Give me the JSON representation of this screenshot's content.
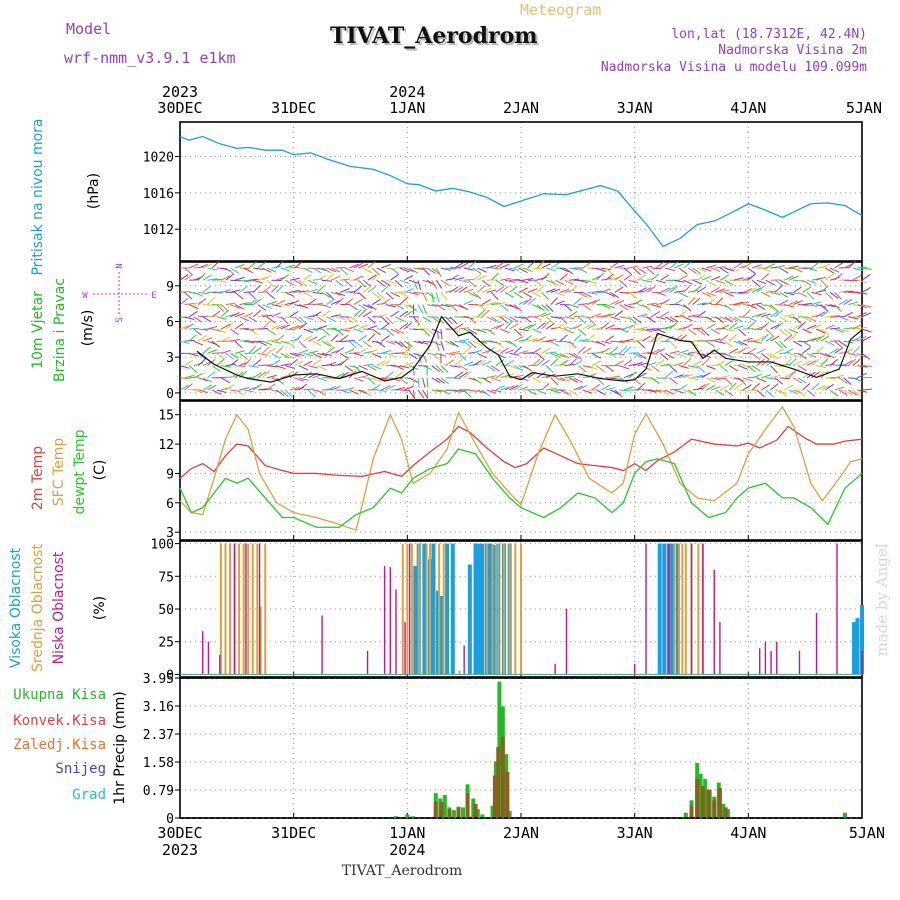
{
  "header": {
    "model_label": "Model",
    "model_name": "wrf-nmm_v3.9.1 e1km",
    "title": "TIVAT_Aerodrom",
    "meteogram_label": "Meteogram",
    "lonlat": "lon,lat (18.7312E, 42.4N)",
    "elevation": "Nadmorska Visina 2m",
    "model_elevation": "Nadmorska Visina u modelu 109.099m",
    "watermark": "made by Angel",
    "footer_title": "TIVAT_Aerodrom"
  },
  "colors": {
    "pressure": "#1aa0e0",
    "t2m": "#e83c3c",
    "sfc": "#dca040",
    "dew": "#22cc22",
    "high_cloud": "#1aa0e0",
    "mid_cloud": "#dca040",
    "low_cloud": "#c01890",
    "total_precip": "#22bb22",
    "conv_precip": "#e83c3c",
    "frz_precip": "#f07030",
    "snow": "#4040e0",
    "hail": "#20c0c0",
    "model_label": "#9040c0"
  },
  "time_axis": {
    "top_years": [
      {
        "label": "2023",
        "day": 0
      },
      {
        "label": "2024",
        "day": 2
      }
    ],
    "bottom_years": [
      {
        "label": "2023",
        "day": 0
      },
      {
        "label": "2024",
        "day": 2
      }
    ],
    "days": [
      "30DEC",
      "31DEC",
      "1JAN",
      "2JAN",
      "3JAN",
      "4JAN",
      "5JAN"
    ]
  },
  "wind_axis_labels": {
    "n": "N",
    "s": "S",
    "w": "W",
    "e": "E"
  },
  "chart_data": [
    {
      "type": "line",
      "panel": "pressure",
      "ylabel": "Pritisak na nivou mora",
      "unit": "(hPa)",
      "yticks": [
        1012,
        1016,
        1020
      ],
      "ylim": [
        1008.5,
        1023.8
      ],
      "grid": true,
      "series": [
        {
          "x": [
            0,
            0.08,
            0.2,
            0.35,
            0.5,
            0.6,
            0.75,
            0.9,
            1.0,
            1.15,
            1.3,
            1.5,
            1.7,
            1.85,
            2.0,
            2.1,
            2.25,
            2.4,
            2.55,
            2.7,
            2.85,
            3.0,
            3.2,
            3.4,
            3.55,
            3.7,
            3.85,
            4.0,
            4.1,
            4.25,
            4.4,
            4.55,
            4.7,
            4.85,
            5.0,
            5.15,
            5.3,
            5.45,
            5.55,
            5.7,
            5.85,
            6.0
          ],
          "values": [
            1022.2,
            1021.8,
            1022.2,
            1021.4,
            1020.9,
            1021.0,
            1020.7,
            1020.7,
            1020.2,
            1020.4,
            1019.7,
            1018.9,
            1018.6,
            1017.9,
            1017.0,
            1016.9,
            1016.2,
            1016.5,
            1016.1,
            1015.5,
            1014.5,
            1015.1,
            1015.9,
            1015.8,
            1016.3,
            1016.8,
            1016.2,
            1014.0,
            1012.6,
            1010.1,
            1011.0,
            1012.5,
            1012.9,
            1013.8,
            1014.8,
            1014.1,
            1013.3,
            1014.2,
            1014.8,
            1014.9,
            1014.6,
            1013.5
          ]
        }
      ]
    },
    {
      "type": "line",
      "panel": "wind",
      "ylabel": "10m Vjetar Brzina i Pravac",
      "unit": "(m/s)",
      "yticks": [
        0,
        3,
        6,
        9
      ],
      "ylim": [
        -0.6,
        11.0
      ],
      "grid": true,
      "series": [
        {
          "x": [
            0.15,
            0.3,
            0.5,
            0.6,
            0.8,
            1.0,
            1.2,
            1.4,
            1.6,
            1.8,
            1.95,
            2.05,
            2.2,
            2.3,
            2.45,
            2.55,
            2.7,
            2.8,
            2.9,
            3.0,
            3.1,
            3.3,
            3.5,
            3.7,
            3.9,
            4.0,
            4.1,
            4.2,
            4.4,
            4.5,
            4.6,
            4.7,
            4.8,
            5.0,
            5.2,
            5.4,
            5.6,
            5.8,
            5.9,
            6.0
          ],
          "values": [
            3.5,
            2.4,
            1.5,
            1.2,
            0.9,
            1.5,
            1.6,
            1.2,
            1.8,
            1.0,
            1.3,
            2.0,
            4.0,
            6.4,
            4.8,
            5.1,
            3.8,
            3.2,
            1.4,
            1.1,
            1.7,
            1.4,
            1.6,
            1.2,
            1.0,
            1.1,
            2.0,
            5.0,
            4.4,
            4.3,
            2.9,
            3.6,
            2.9,
            2.6,
            2.6,
            2.0,
            1.3,
            2.0,
            4.5,
            5.3
          ]
        }
      ]
    },
    {
      "type": "line",
      "panel": "temperature",
      "ylabel": "2m Temp SFC Temp dewpt Temp",
      "unit": "(C)",
      "yticks": [
        3,
        6,
        9,
        12,
        15
      ],
      "ylim": [
        2.2,
        16.4
      ],
      "grid": true,
      "series": [
        {
          "name": "2m Temp",
          "x": [
            0,
            0.1,
            0.2,
            0.3,
            0.4,
            0.5,
            0.6,
            0.75,
            0.9,
            1.0,
            1.2,
            1.4,
            1.6,
            1.8,
            1.95,
            2.05,
            2.2,
            2.35,
            2.45,
            2.55,
            2.7,
            2.85,
            2.95,
            3.05,
            3.2,
            3.35,
            3.5,
            3.65,
            3.8,
            3.9,
            4.0,
            4.1,
            4.2,
            4.35,
            4.5,
            4.7,
            4.9,
            5.0,
            5.1,
            5.25,
            5.35,
            5.5,
            5.6,
            5.75,
            5.85,
            6.0
          ],
          "values": [
            8.5,
            9.5,
            10.0,
            9.2,
            10.8,
            12.0,
            11.8,
            9.8,
            9.3,
            9.0,
            9.0,
            8.8,
            8.7,
            9.2,
            8.7,
            9.8,
            11.2,
            12.5,
            13.8,
            13.2,
            11.6,
            10.2,
            9.6,
            10.0,
            11.6,
            10.8,
            10.0,
            9.8,
            9.6,
            9.3,
            10.0,
            9.3,
            10.3,
            11.2,
            12.5,
            12.0,
            11.8,
            12.1,
            11.6,
            12.4,
            13.8,
            12.6,
            12.0,
            12.0,
            12.3,
            12.5
          ]
        },
        {
          "name": "SFC Temp",
          "x": [
            0,
            0.1,
            0.2,
            0.3,
            0.4,
            0.5,
            0.6,
            0.7,
            0.85,
            1.0,
            1.2,
            1.4,
            1.55,
            1.7,
            1.85,
            1.95,
            2.05,
            2.2,
            2.35,
            2.45,
            2.6,
            2.75,
            2.9,
            3.0,
            3.15,
            3.3,
            3.45,
            3.6,
            3.8,
            3.9,
            4.0,
            4.1,
            4.25,
            4.4,
            4.55,
            4.7,
            4.9,
            5.0,
            5.15,
            5.3,
            5.4,
            5.55,
            5.65,
            5.8,
            5.9,
            6.0
          ],
          "values": [
            6.2,
            5.0,
            4.8,
            8.5,
            12.5,
            15.0,
            13.5,
            9.0,
            6.0,
            5.0,
            4.5,
            3.8,
            3.2,
            10.5,
            15.0,
            12.5,
            8.0,
            9.0,
            11.5,
            15.2,
            12.0,
            9.0,
            7.0,
            5.8,
            11.0,
            15.0,
            12.0,
            8.5,
            7.0,
            8.0,
            13.0,
            15.1,
            12.0,
            8.0,
            6.5,
            6.2,
            8.0,
            11.0,
            13.5,
            15.8,
            13.8,
            8.0,
            6.2,
            8.5,
            10.2,
            10.5
          ]
        },
        {
          "name": "dewpt Temp",
          "x": [
            0,
            0.1,
            0.2,
            0.3,
            0.4,
            0.5,
            0.6,
            0.75,
            0.9,
            1.0,
            1.2,
            1.4,
            1.55,
            1.7,
            1.85,
            1.95,
            2.05,
            2.2,
            2.35,
            2.45,
            2.6,
            2.75,
            2.9,
            3.0,
            3.2,
            3.35,
            3.5,
            3.65,
            3.8,
            3.9,
            4.0,
            4.1,
            4.2,
            4.35,
            4.5,
            4.65,
            4.8,
            4.9,
            5.0,
            5.15,
            5.3,
            5.4,
            5.55,
            5.7,
            5.85,
            6.0
          ],
          "values": [
            7.5,
            5.0,
            5.5,
            7.0,
            8.5,
            8.0,
            8.5,
            6.5,
            4.5,
            4.5,
            3.5,
            3.5,
            4.8,
            5.5,
            7.5,
            7.0,
            8.5,
            9.5,
            10.0,
            11.5,
            11.0,
            8.5,
            6.5,
            5.5,
            4.5,
            5.5,
            7.0,
            6.5,
            5.0,
            6.0,
            9.0,
            10.2,
            10.5,
            10.0,
            6.0,
            4.5,
            5.0,
            6.5,
            7.5,
            8.0,
            6.5,
            6.5,
            5.5,
            3.8,
            7.5,
            9.0
          ]
        }
      ]
    },
    {
      "type": "bar",
      "panel": "cloud",
      "ylabel": "Visoka Oblacnost Srednja Oblacnost Niska Oblacnost",
      "unit": "(%)",
      "yticks": [
        0,
        25,
        50,
        75,
        100
      ],
      "ylim": [
        -2,
        102
      ],
      "grid": true,
      "series": [
        {
          "name": "Visoka Oblacnost",
          "x": [
            2.07,
            2.1,
            2.15,
            2.2,
            2.23,
            2.27,
            2.3,
            2.35,
            2.4,
            2.55,
            2.6,
            2.63,
            2.66,
            2.7,
            2.73,
            2.76,
            2.8,
            2.85,
            2.9,
            4.22,
            4.26,
            4.3,
            4.33,
            4.38,
            5.93,
            5.96,
            6.0
          ],
          "values": [
            83,
            100,
            100,
            88,
            100,
            64,
            60,
            100,
            100,
            84,
            100,
            100,
            100,
            100,
            100,
            99,
            100,
            100,
            100,
            100,
            100,
            100,
            100,
            100,
            40,
            43,
            53
          ]
        },
        {
          "name": "Srednja Oblacnost",
          "x": [
            0.36,
            0.4,
            0.44,
            0.48,
            0.52,
            0.56,
            0.6,
            0.64,
            0.68,
            0.71,
            0.75,
            1.96,
            2.0,
            2.04,
            2.1,
            2.17,
            2.2,
            2.28,
            2.32,
            2.46,
            2.7,
            2.75,
            2.8,
            2.85,
            2.9,
            2.95,
            3.0,
            4.35,
            4.39,
            4.42,
            4.45,
            4.5,
            4.56,
            4.6
          ],
          "values": [
            100,
            100,
            100,
            100,
            100,
            100,
            100,
            100,
            100,
            52,
            100,
            100,
            100,
            100,
            100,
            100,
            100,
            100,
            100,
            3,
            100,
            100,
            100,
            100,
            100,
            100,
            100,
            100,
            100,
            100,
            100,
            100,
            100,
            100
          ]
        },
        {
          "name": "Niska Oblacnost",
          "x": [
            0.2,
            0.25,
            0.35,
            0.48,
            0.58,
            0.7,
            1.25,
            1.65,
            1.8,
            1.85,
            1.9,
            1.98,
            2.02,
            2.5,
            3.3,
            3.4,
            4.0,
            4.1,
            4.3,
            4.5,
            4.6,
            4.7,
            4.75,
            5.1,
            5.15,
            5.2,
            5.25,
            5.45,
            5.6,
            5.78,
            6.0
          ],
          "values": [
            33,
            25,
            15,
            100,
            100,
            100,
            45,
            18,
            83,
            82,
            65,
            40,
            100,
            22,
            8,
            50,
            8,
            100,
            100,
            100,
            100,
            80,
            40,
            20,
            25,
            18,
            25,
            18,
            47,
            100,
            18
          ]
        }
      ]
    },
    {
      "type": "bar",
      "panel": "precip",
      "ylabel": "1hr Precip (mm)",
      "yticks": [
        0,
        0.79,
        1.58,
        2.37,
        3.16,
        3.95
      ],
      "ylim": [
        0,
        3.95
      ],
      "grid": true,
      "legend": [
        "Ukupna Kisa",
        "Konvek.Kisa",
        "Zaledj.Kisa",
        "Snijeg",
        "Grad"
      ],
      "series": [
        {
          "name": "Ukupna Kisa",
          "x": [
            1.9,
            2.0,
            2.05,
            2.25,
            2.29,
            2.33,
            2.37,
            2.41,
            2.45,
            2.49,
            2.53,
            2.58,
            2.62,
            2.66,
            2.75,
            2.78,
            2.81,
            2.84,
            2.87,
            2.9,
            4.45,
            4.5,
            4.55,
            4.58,
            4.62,
            4.66,
            4.7,
            4.74,
            4.78,
            4.82,
            5.85
          ],
          "values": [
            0.05,
            0.1,
            0.05,
            0.7,
            0.55,
            0.65,
            0.3,
            0.22,
            0.32,
            0.3,
            0.95,
            0.55,
            0.25,
            0.1,
            0.35,
            1.6,
            3.85,
            3.15,
            1.8,
            0.2,
            0.15,
            0.5,
            1.55,
            1.25,
            1.1,
            0.8,
            0.6,
            1.0,
            0.4,
            0.25,
            0.15
          ]
        },
        {
          "name": "Konvek.Kisa",
          "x": [
            2.25,
            2.3,
            2.37,
            2.45,
            2.53,
            2.6,
            2.77,
            2.8,
            2.84,
            2.88,
            4.5,
            4.55,
            4.6,
            4.65,
            4.7,
            4.75,
            4.8
          ],
          "values": [
            0.45,
            0.45,
            0.25,
            0.3,
            0.7,
            0.4,
            1.2,
            2.0,
            2.3,
            1.3,
            0.35,
            1.1,
            0.9,
            0.8,
            0.5,
            0.85,
            0.3
          ]
        }
      ]
    }
  ]
}
